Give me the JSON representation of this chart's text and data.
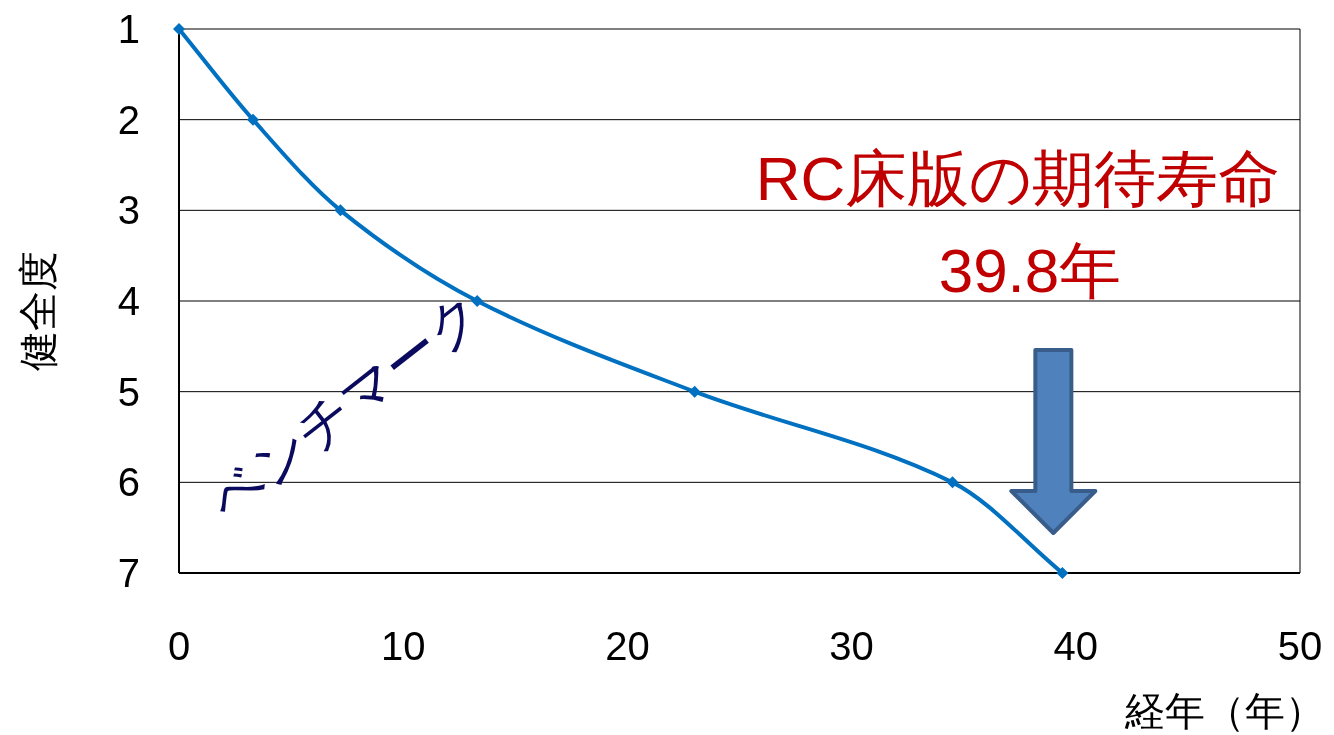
{
  "chart_data": {
    "type": "line",
    "xlabel": "経年（年）",
    "ylabel": "健全度",
    "x": [
      0,
      3.3,
      7.2,
      13.3,
      23,
      34.5,
      39.4
    ],
    "series": [
      {
        "color": "#0070c0",
        "values": [
          1,
          2,
          3,
          4,
          5,
          6,
          7
        ]
      }
    ],
    "xlim": [
      0,
      50
    ],
    "xticks": [
      0,
      10,
      20,
      30,
      40,
      50
    ],
    "ylim": [
      7,
      1
    ],
    "yticks": [
      1,
      2,
      3,
      4,
      5,
      6,
      7
    ],
    "grid": "y",
    "marker": "diamond",
    "line_style": "solid",
    "annotations": [
      "ベンチマーク",
      "RC床版の期待寿命",
      "39.8年"
    ]
  }
}
